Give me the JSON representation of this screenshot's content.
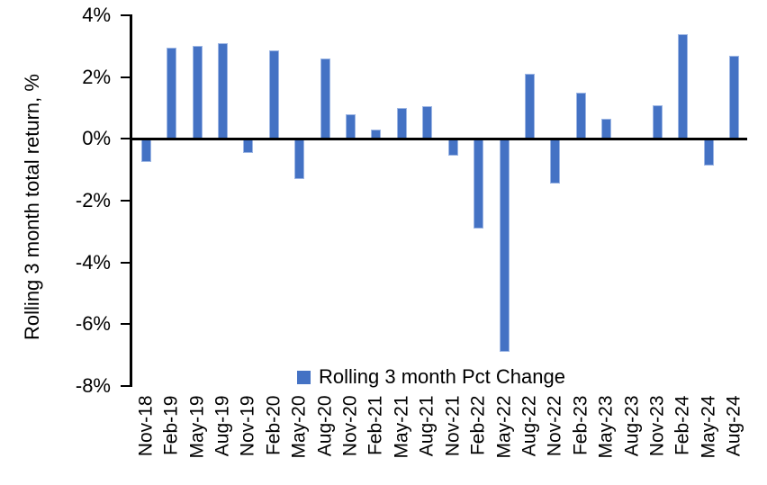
{
  "chart_data": {
    "type": "bar",
    "title": "",
    "ylabel": "Rolling 3 month total return, %",
    "xlabel": "",
    "ylim": [
      -8,
      4
    ],
    "yticks": [
      4,
      2,
      0,
      -2,
      -4,
      -6,
      -8
    ],
    "ytick_labels": [
      "4%",
      "2%",
      "0%",
      "-2%",
      "-4%",
      "-6%",
      "-8%"
    ],
    "categories": [
      "Nov-18",
      "Feb-19",
      "May-19",
      "Aug-19",
      "Nov-19",
      "Feb-20",
      "May-20",
      "Aug-20",
      "Nov-20",
      "Feb-21",
      "May-21",
      "Aug-21",
      "Nov-21",
      "Feb-22",
      "May-22",
      "Aug-22",
      "Nov-22",
      "Feb-23",
      "May-23",
      "Aug-23",
      "Nov-23",
      "Feb-24",
      "May-24",
      "Aug-24"
    ],
    "values": [
      -0.75,
      2.95,
      3.0,
      3.1,
      -0.45,
      2.85,
      -1.3,
      2.6,
      0.8,
      0.3,
      1.0,
      1.05,
      -0.55,
      -2.9,
      -6.9,
      2.1,
      -1.45,
      1.5,
      0.65,
      0.0,
      1.1,
      3.4,
      -0.85,
      2.7
    ],
    "series_name": "Rolling 3 month Pct Change",
    "bar_color": "#4472C4",
    "bar_border_color": "#9DB6E4",
    "axis_color": "#000000",
    "grid": false,
    "legend_position": "bottom-center-inside"
  }
}
